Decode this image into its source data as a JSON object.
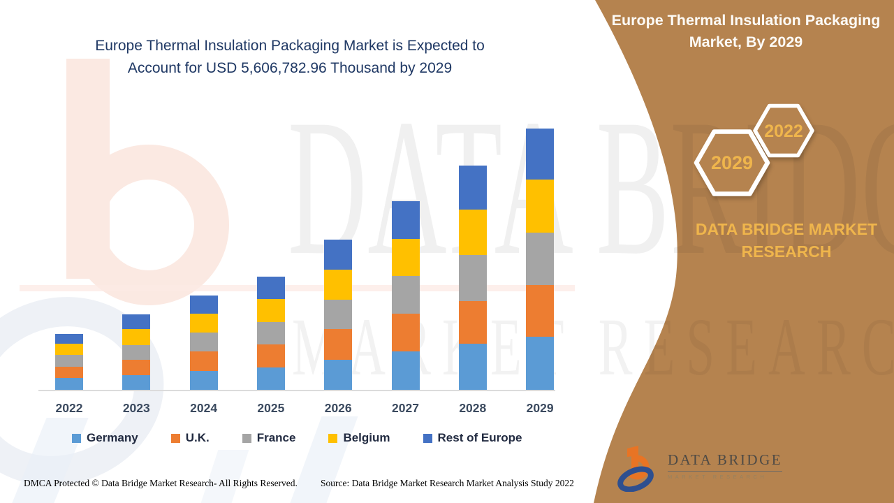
{
  "page": {
    "background": "#FFFFFF"
  },
  "main_title": {
    "line1": "Europe Thermal Insulation Packaging Market is Expected to",
    "line2": "Account for USD 5,606,782.96 Thousand by 2029",
    "color": "#1F3864"
  },
  "chart_data": {
    "type": "bar",
    "stacked": true,
    "title": "Europe Thermal Insulation Packaging Market is Expected to Account for USD 5,606,782.96 Thousand by 2029",
    "categories": [
      "2022",
      "2023",
      "2024",
      "2025",
      "2026",
      "2027",
      "2028",
      "2029"
    ],
    "series": [
      {
        "name": "Germany",
        "color": "#5B9BD5",
        "values": [
          17,
          21,
          27,
          32,
          43,
          55,
          66,
          76
        ]
      },
      {
        "name": "U.K.",
        "color": "#ED7D31",
        "values": [
          16,
          22,
          28,
          33,
          44,
          54,
          61,
          74
        ]
      },
      {
        "name": "France",
        "color": "#A5A5A5",
        "values": [
          17,
          21,
          27,
          32,
          42,
          54,
          66,
          75
        ]
      },
      {
        "name": "Belgium",
        "color": "#FFC000",
        "values": [
          16,
          23,
          27,
          33,
          43,
          53,
          65,
          76
        ]
      },
      {
        "name": "Rest of Europe",
        "color": "#4472C4",
        "values": [
          14,
          21,
          26,
          32,
          43,
          54,
          63,
          73
        ]
      }
    ],
    "stacked_totals": [
      80,
      108,
      135,
      162,
      215,
      270,
      321,
      374
    ],
    "units": "relative units (no y-axis shown; values estimated from bar heights)",
    "ylim": [
      0,
      400
    ],
    "grid": false,
    "y_axis_visible": false,
    "legend_position": "bottom",
    "legend_entries": [
      "Germany",
      "U.K.",
      "France",
      "Belgium",
      "Rest of Europe"
    ]
  },
  "footer": {
    "left": "DMCA Protected © Data Bridge Market Research- All Rights Reserved.",
    "source": "Source: Data Bridge Market Research Market Analysis Study 2022"
  },
  "right_panel": {
    "background": "#B5834F",
    "title": "Europe Thermal Insulation Packaging Market, By 2029",
    "hexagon_large_label": "2029",
    "hexagon_small_label": "2022",
    "hexagon_label_color": "#EFB54C",
    "hexagon_stroke_color": "#FFFFFF",
    "brand_line1": "DATA BRIDGE MARKET",
    "brand_line2": "RESEARCH",
    "brand_color": "#EFB54C",
    "logo": {
      "title": "DATA BRIDGE",
      "subtitle": "MARKET RESEARCH",
      "icon": "data-bridge-b-logo",
      "orange": "#E87424",
      "blue": "#2E4F8F"
    }
  },
  "watermark": {
    "line1": "DATA BRIDGE",
    "line2": "MARKET RESEARCH"
  }
}
